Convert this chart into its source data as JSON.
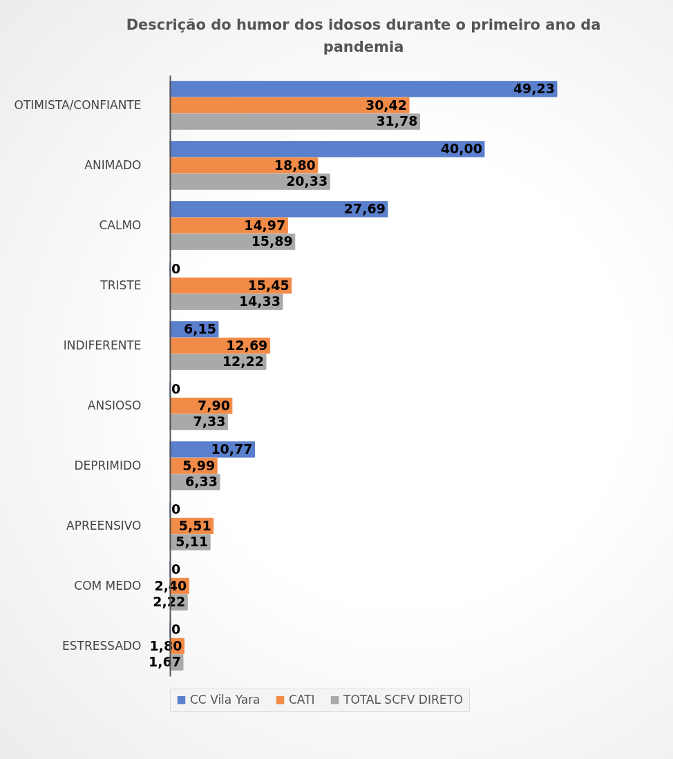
{
  "chart_data": {
    "type": "bar",
    "orientation": "horizontal",
    "title": "Descrição do humor dos idosos durante o primeiro ano da pandemia",
    "categories": [
      "OTIMISTA/CONFIANTE",
      "ANIMADO",
      "CALMO",
      "TRISTE",
      "INDIFERENTE",
      "ANSIOSO",
      "DEPRIMIDO",
      "APREENSIVO",
      "COM MEDO",
      "ESTRESSADO"
    ],
    "series": [
      {
        "name": "CC Vila Yara",
        "color": "#5a7fcd",
        "values": [
          49.23,
          40.0,
          27.69,
          0,
          6.15,
          0,
          10.77,
          0,
          0,
          0
        ],
        "value_labels": [
          "49,23",
          "40,00",
          "27,69",
          "0",
          "6,15",
          "0",
          "10,77",
          "0",
          "0",
          "0"
        ]
      },
      {
        "name": "CATI",
        "color": "#f18b47",
        "values": [
          30.42,
          18.8,
          14.97,
          15.45,
          12.69,
          7.9,
          5.99,
          5.51,
          2.4,
          1.8
        ],
        "value_labels": [
          "30,42",
          "18,80",
          "14,97",
          "15,45",
          "12,69",
          "7,90",
          "5,99",
          "5,51",
          "2,40",
          "1,80"
        ]
      },
      {
        "name": "TOTAL SCFV DIRETO",
        "color": "#a9a9a9",
        "values": [
          31.78,
          20.33,
          15.89,
          14.33,
          12.22,
          7.33,
          6.33,
          5.11,
          2.22,
          1.67
        ],
        "value_labels": [
          "31,78",
          "20,33",
          "15,89",
          "14,33",
          "12,22",
          "7,33",
          "6,33",
          "5,11",
          "2,22",
          "1,67"
        ]
      }
    ],
    "legend": "bottom"
  }
}
